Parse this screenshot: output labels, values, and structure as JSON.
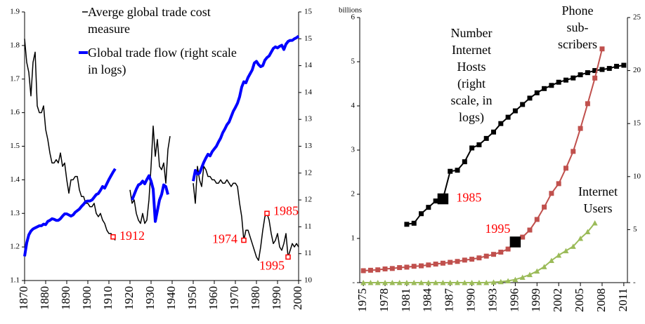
{
  "chart_data": [
    {
      "type": "line",
      "x": [
        1870,
        1871,
        1872,
        1873,
        1874,
        1875,
        1876,
        1877,
        1878,
        1879,
        1880,
        1881,
        1882,
        1883,
        1884,
        1885,
        1886,
        1887,
        1888,
        1889,
        1890,
        1891,
        1892,
        1893,
        1894,
        1895,
        1896,
        1897,
        1898,
        1899,
        1900,
        1901,
        1902,
        1903,
        1904,
        1905,
        1906,
        1907,
        1908,
        1909,
        1910,
        1911,
        1912,
        1913,
        1914,
        1915,
        1916,
        1917,
        1918,
        1919,
        1920,
        1921,
        1922,
        1923,
        1924,
        1925,
        1926,
        1927,
        1928,
        1929,
        1930,
        1931,
        1932,
        1933,
        1934,
        1935,
        1936,
        1937,
        1938,
        1939,
        1940,
        1941,
        1942,
        1943,
        1944,
        1945,
        1946,
        1947,
        1948,
        1949,
        1950,
        1951,
        1952,
        1953,
        1954,
        1955,
        1956,
        1957,
        1958,
        1959,
        1960,
        1961,
        1962,
        1963,
        1964,
        1965,
        1966,
        1967,
        1968,
        1969,
        1970,
        1971,
        1972,
        1973,
        1974,
        1975,
        1976,
        1977,
        1978,
        1979,
        1980,
        1981,
        1982,
        1983,
        1984,
        1985,
        1986,
        1987,
        1988,
        1989,
        1990,
        1991,
        1992,
        1993,
        1994,
        1995,
        1996,
        1997,
        1998,
        1999,
        2000
      ],
      "xlim": [
        1870,
        2000
      ],
      "xticks": [
        1870,
        1880,
        1890,
        1900,
        1910,
        1920,
        1930,
        1940,
        1950,
        1960,
        1970,
        1980,
        1990,
        2000
      ],
      "ylim": [
        1.1,
        1.9
      ],
      "yticks": [
        1.1,
        1.2,
        1.3,
        1.4,
        1.5,
        1.6,
        1.7,
        1.8,
        1.9
      ],
      "y2lim": [
        10,
        15
      ],
      "y2ticks": [
        10,
        {
          "value": 10.5,
          "label": "11"
        },
        11,
        {
          "value": 11.5,
          "label": "12"
        },
        12,
        {
          "value": 12.5,
          "label": "13"
        },
        13,
        {
          "value": 13.5,
          "label": "14"
        },
        14,
        {
          "value": 14.5,
          "label": "15"
        },
        15
      ],
      "series": [
        {
          "name": "Averge global trade cost measure",
          "color": "#000000",
          "width": 1.5,
          "values": [
            1.82,
            1.75,
            1.72,
            1.65,
            1.75,
            1.78,
            1.62,
            1.6,
            1.6,
            1.62,
            1.55,
            1.52,
            1.48,
            1.45,
            1.45,
            1.46,
            1.45,
            1.48,
            1.44,
            1.45,
            1.4,
            1.36,
            1.4,
            1.4,
            1.41,
            1.41,
            1.37,
            1.35,
            1.35,
            1.33,
            1.33,
            1.32,
            1.32,
            1.33,
            1.3,
            1.29,
            1.3,
            1.28,
            1.27,
            1.25,
            1.24,
            1.24,
            1.23,
            1.22,
            null,
            null,
            null,
            null,
            null,
            null,
            1.37,
            1.33,
            1.34,
            1.3,
            1.28,
            1.27,
            1.3,
            1.27,
            1.28,
            1.34,
            1.44,
            1.56,
            1.47,
            1.52,
            1.44,
            1.43,
            1.45,
            1.39,
            1.49,
            1.53,
            null,
            null,
            null,
            null,
            null,
            null,
            null,
            null,
            null,
            null,
            1.39,
            1.33,
            1.44,
            1.4,
            1.38,
            1.44,
            1.43,
            1.41,
            1.41,
            1.4,
            1.4,
            1.39,
            1.39,
            1.4,
            1.39,
            1.39,
            1.4,
            1.39,
            1.38,
            1.39,
            1.39,
            1.38,
            1.33,
            1.29,
            1.22,
            1.25,
            1.25,
            1.23,
            1.21,
            1.19,
            1.17,
            1.16,
            1.2,
            1.25,
            1.29,
            1.3,
            1.28,
            1.24,
            1.21,
            1.22,
            1.24,
            1.2,
            1.19,
            1.21,
            1.24,
            1.17,
            1.19,
            1.21,
            1.2,
            1.21,
            1.2
          ]
        },
        {
          "name": "Global trade flow (right scale in logs)",
          "color": "#0000ff",
          "width": 4,
          "axis": "y2",
          "values": [
            10.45,
            10.7,
            10.85,
            10.92,
            10.96,
            10.98,
            11.0,
            11.02,
            11.02,
            11.05,
            11.04,
            11.1,
            11.12,
            11.15,
            11.14,
            11.12,
            11.12,
            11.15,
            11.2,
            11.24,
            11.24,
            11.22,
            11.2,
            11.22,
            11.27,
            11.3,
            11.33,
            11.38,
            11.42,
            11.47,
            11.48,
            11.48,
            11.5,
            11.55,
            11.6,
            11.62,
            11.68,
            11.75,
            11.72,
            11.8,
            11.88,
            11.95,
            12.02,
            12.08,
            null,
            null,
            null,
            null,
            null,
            null,
            null,
            11.5,
            11.6,
            11.7,
            11.78,
            11.8,
            11.85,
            11.8,
            11.88,
            11.95,
            11.85,
            11.7,
            11.1,
            11.3,
            11.5,
            11.6,
            11.78,
            11.75,
            11.6,
            null,
            null,
            null,
            null,
            null,
            null,
            null,
            null,
            null,
            null,
            null,
            11.85,
            12.05,
            11.98,
            12.0,
            12.1,
            12.2,
            12.28,
            12.35,
            12.32,
            12.4,
            12.45,
            12.5,
            12.58,
            12.65,
            12.75,
            12.82,
            12.9,
            12.95,
            13.05,
            13.15,
            13.22,
            13.3,
            13.42,
            13.6,
            13.7,
            13.68,
            13.78,
            13.85,
            13.92,
            14.05,
            14.08,
            14.02,
            13.98,
            14.0,
            14.1,
            14.15,
            14.18,
            14.25,
            14.32,
            14.35,
            14.33,
            14.36,
            14.38,
            14.3,
            14.4,
            14.45,
            14.47,
            14.47,
            14.5,
            14.52,
            14.55
          ]
        }
      ],
      "annotation_color": "#ff0000",
      "annotations": [
        {
          "text": "1912",
          "x": 1912,
          "y": 1.23
        },
        {
          "text": "1974",
          "x": 1974,
          "y": 1.22
        },
        {
          "text": "1985",
          "x": 1985,
          "y": 1.3
        },
        {
          "text": "1995",
          "x": 1995,
          "y": 1.17
        }
      ]
    },
    {
      "type": "line",
      "y_label": "billions",
      "x": [
        1975,
        1976,
        1977,
        1978,
        1979,
        1980,
        1981,
        1982,
        1983,
        1984,
        1985,
        1986,
        1987,
        1988,
        1989,
        1990,
        1991,
        1992,
        1993,
        1994,
        1995,
        1996,
        1997,
        1998,
        1999,
        2000,
        2001,
        2002,
        2003,
        2004,
        2005,
        2006,
        2007,
        2008,
        2009,
        2010,
        2011
      ],
      "xlim": [
        1974.5,
        2011.5
      ],
      "xticks": [
        1975,
        1978,
        1981,
        1984,
        1987,
        1990,
        1993,
        1996,
        1999,
        2002,
        2005,
        2008,
        2011
      ],
      "ylim": [
        0,
        6
      ],
      "yticks": [
        {
          "value": 0,
          "label": "-"
        },
        1,
        2,
        3,
        4,
        5,
        6
      ],
      "y2lim": [
        0,
        25
      ],
      "y2ticks": [
        {
          "value": 0,
          "label": "-"
        },
        5,
        10,
        15,
        20,
        25
      ],
      "series": [
        {
          "name": "Number Internet Hosts (right scale, in logs)",
          "color": "#000000",
          "marker": "square",
          "axis": "y2",
          "values": [
            null,
            null,
            null,
            null,
            null,
            null,
            5.5,
            5.6,
            6.5,
            7.1,
            7.7,
            7.9,
            10.5,
            10.6,
            11.4,
            12.7,
            13.0,
            13.6,
            14.2,
            15.0,
            15.6,
            16.2,
            16.8,
            17.4,
            17.9,
            18.3,
            18.6,
            18.9,
            19.1,
            19.3,
            19.6,
            19.8,
            20.0,
            20.1,
            20.2,
            20.4,
            20.5
          ]
        },
        {
          "name": "Phone sub-scribers",
          "color": "#c0504d",
          "marker": "square",
          "values": [
            0.27,
            0.28,
            0.29,
            0.31,
            0.32,
            0.34,
            0.35,
            0.37,
            0.38,
            0.4,
            0.42,
            0.44,
            0.46,
            0.48,
            0.51,
            0.53,
            0.56,
            0.6,
            0.64,
            0.69,
            0.76,
            0.92,
            1.03,
            1.19,
            1.43,
            1.71,
            2.02,
            2.24,
            2.59,
            2.97,
            3.49,
            4.05,
            4.63,
            5.29,
            null,
            null,
            null
          ]
        },
        {
          "name": "Internet Users",
          "color": "#9bbb59",
          "marker": "triangle",
          "values": [
            0,
            0,
            0,
            0,
            0,
            0,
            0,
            0,
            0,
            0,
            0,
            0,
            0,
            0,
            0,
            0,
            0,
            0,
            0.01,
            0.02,
            0.04,
            0.07,
            0.12,
            0.18,
            0.26,
            0.36,
            0.5,
            0.62,
            0.72,
            0.82,
            1.0,
            1.15,
            1.35,
            null,
            null,
            null,
            null
          ]
        }
      ],
      "annotation_color": "#ff0000",
      "annotations": [
        {
          "text": "1985",
          "x": 1986,
          "y": 7.9,
          "axis": "y2"
        },
        {
          "text": "1995",
          "x": 1996,
          "y": 0.92
        }
      ]
    }
  ]
}
